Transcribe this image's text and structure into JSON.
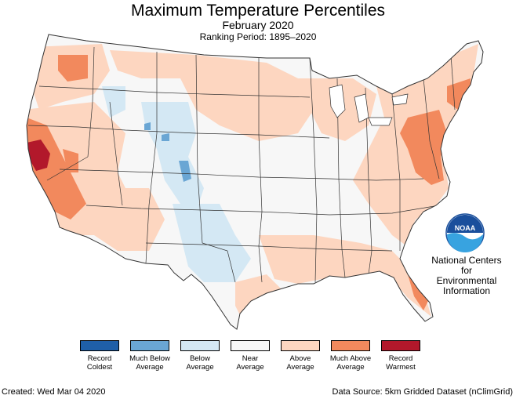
{
  "header": {
    "title": "Maximum Temperature Percentiles",
    "subtitle": "February 2020",
    "ranking_period": "Ranking Period: 1895–2020"
  },
  "map": {
    "region": "contiguous-united-states",
    "base_color": "#f7f7f7",
    "border_color": "#333333"
  },
  "legend": {
    "items": [
      {
        "label": "Record Coldest",
        "color": "#1f5fa8"
      },
      {
        "label": "Much Below Average",
        "color": "#6aa6d4"
      },
      {
        "label": "Below Average",
        "color": "#d4e8f4"
      },
      {
        "label": "Near Average",
        "color": "#f7f7f7"
      },
      {
        "label": "Above Average",
        "color": "#fdd6c0"
      },
      {
        "label": "Much Above Average",
        "color": "#f2895d"
      },
      {
        "label": "Record Warmest",
        "color": "#b2182b"
      }
    ]
  },
  "agency": {
    "logo_icon": "noaa-logo",
    "logo_text": "NOAA",
    "name_line1": "National Centers for",
    "name_line2": "Environmental",
    "name_line3": "Information"
  },
  "footer": {
    "created": "Created: Wed Mar 04 2020",
    "source": "Data Source: 5km Gridded Dataset (nClimGrid)"
  }
}
